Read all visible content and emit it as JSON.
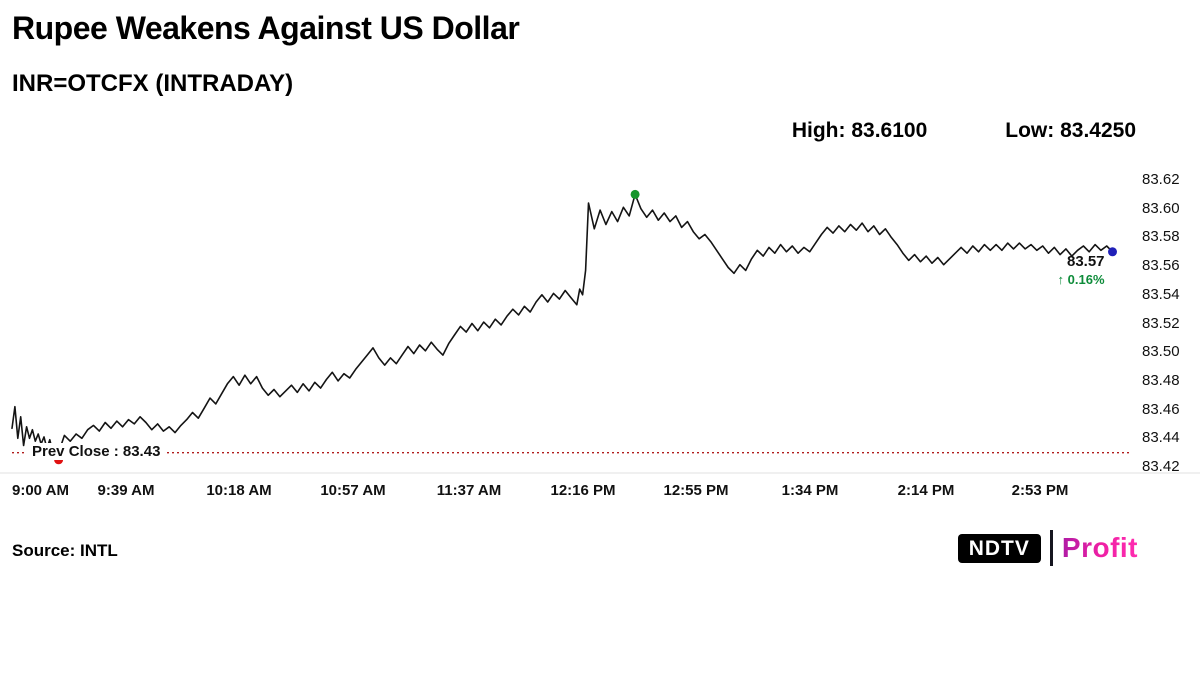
{
  "chart_data": {
    "type": "line",
    "title": "Rupee Weakens Against US Dollar",
    "subtitle": "INR=OTCFX (INTRADAY)",
    "high_label": "High: 83.6100",
    "low_label": "Low: 83.4250",
    "line_color": "#141414",
    "grid": false,
    "ylabel_side": "right",
    "ylim": [
      83.42,
      83.62
    ],
    "xlim_minutes": [
      0,
      384
    ],
    "y_ticks": [
      "83.62",
      "83.60",
      "83.58",
      "83.56",
      "83.54",
      "83.52",
      "83.50",
      "83.48",
      "83.46",
      "83.44",
      "83.42"
    ],
    "x_ticks": [
      {
        "t": 0,
        "label": "9:00 AM"
      },
      {
        "t": 39,
        "label": "9:39 AM"
      },
      {
        "t": 78,
        "label": "10:18 AM"
      },
      {
        "t": 117,
        "label": "10:57 AM"
      },
      {
        "t": 157,
        "label": "11:37 AM"
      },
      {
        "t": 196,
        "label": "12:16 PM"
      },
      {
        "t": 235,
        "label": "12:55 PM"
      },
      {
        "t": 274,
        "label": "1:34 PM"
      },
      {
        "t": 314,
        "label": "2:14 PM"
      },
      {
        "t": 353,
        "label": "2:53 PM"
      }
    ],
    "prev_close": {
      "value": 83.43,
      "label": "Prev Close : 83.43",
      "color": "#b11c1c"
    },
    "low_marker": {
      "t": 16,
      "value": 83.425,
      "color": "#e01111"
    },
    "high_marker": {
      "t": 214,
      "value": 83.61,
      "color": "#18962d"
    },
    "last_marker": {
      "t": 378,
      "value": 83.57,
      "color": "#2020b8",
      "price_label": "83.57",
      "change_label": "↑ 0.16%",
      "change_color": "#0e8c3a"
    },
    "series": [
      {
        "name": "INR=OTCFX",
        "points": [
          [
            0,
            83.447
          ],
          [
            1,
            83.462
          ],
          [
            2,
            83.44
          ],
          [
            3,
            83.455
          ],
          [
            4,
            83.435
          ],
          [
            5,
            83.448
          ],
          [
            6,
            83.44
          ],
          [
            7,
            83.446
          ],
          [
            8,
            83.438
          ],
          [
            9,
            83.443
          ],
          [
            10,
            83.436
          ],
          [
            11,
            83.441
          ],
          [
            12,
            83.433
          ],
          [
            13,
            83.439
          ],
          [
            14,
            83.43
          ],
          [
            15,
            83.435
          ],
          [
            16,
            83.425
          ],
          [
            17,
            83.436
          ],
          [
            18,
            83.442
          ],
          [
            20,
            83.438
          ],
          [
            22,
            83.443
          ],
          [
            24,
            83.44
          ],
          [
            26,
            83.446
          ],
          [
            28,
            83.449
          ],
          [
            30,
            83.445
          ],
          [
            32,
            83.451
          ],
          [
            34,
            83.447
          ],
          [
            36,
            83.452
          ],
          [
            38,
            83.448
          ],
          [
            40,
            83.453
          ],
          [
            42,
            83.45
          ],
          [
            44,
            83.455
          ],
          [
            46,
            83.451
          ],
          [
            48,
            83.446
          ],
          [
            50,
            83.45
          ],
          [
            52,
            83.445
          ],
          [
            54,
            83.448
          ],
          [
            56,
            83.444
          ],
          [
            58,
            83.449
          ],
          [
            60,
            83.453
          ],
          [
            62,
            83.458
          ],
          [
            64,
            83.454
          ],
          [
            66,
            83.461
          ],
          [
            68,
            83.468
          ],
          [
            70,
            83.464
          ],
          [
            72,
            83.471
          ],
          [
            74,
            83.478
          ],
          [
            76,
            83.483
          ],
          [
            78,
            83.477
          ],
          [
            80,
            83.484
          ],
          [
            82,
            83.478
          ],
          [
            84,
            83.483
          ],
          [
            86,
            83.475
          ],
          [
            88,
            83.47
          ],
          [
            90,
            83.474
          ],
          [
            92,
            83.469
          ],
          [
            94,
            83.473
          ],
          [
            96,
            83.477
          ],
          [
            98,
            83.472
          ],
          [
            100,
            83.478
          ],
          [
            102,
            83.473
          ],
          [
            104,
            83.479
          ],
          [
            106,
            83.475
          ],
          [
            108,
            83.481
          ],
          [
            110,
            83.486
          ],
          [
            112,
            83.48
          ],
          [
            114,
            83.485
          ],
          [
            116,
            83.482
          ],
          [
            118,
            83.488
          ],
          [
            120,
            83.493
          ],
          [
            122,
            83.498
          ],
          [
            124,
            83.503
          ],
          [
            126,
            83.496
          ],
          [
            128,
            83.491
          ],
          [
            130,
            83.496
          ],
          [
            132,
            83.492
          ],
          [
            134,
            83.498
          ],
          [
            136,
            83.504
          ],
          [
            138,
            83.499
          ],
          [
            140,
            83.505
          ],
          [
            142,
            83.501
          ],
          [
            144,
            83.507
          ],
          [
            146,
            83.502
          ],
          [
            148,
            83.498
          ],
          [
            150,
            83.506
          ],
          [
            152,
            83.512
          ],
          [
            154,
            83.518
          ],
          [
            156,
            83.514
          ],
          [
            158,
            83.52
          ],
          [
            160,
            83.515
          ],
          [
            162,
            83.521
          ],
          [
            164,
            83.517
          ],
          [
            166,
            83.523
          ],
          [
            168,
            83.519
          ],
          [
            170,
            83.525
          ],
          [
            172,
            83.53
          ],
          [
            174,
            83.526
          ],
          [
            176,
            83.532
          ],
          [
            178,
            83.528
          ],
          [
            180,
            83.535
          ],
          [
            182,
            83.54
          ],
          [
            184,
            83.535
          ],
          [
            186,
            83.541
          ],
          [
            188,
            83.537
          ],
          [
            190,
            83.543
          ],
          [
            192,
            83.538
          ],
          [
            194,
            83.533
          ],
          [
            195,
            83.544
          ],
          [
            196,
            83.54
          ],
          [
            197,
            83.557
          ],
          [
            198,
            83.604
          ],
          [
            200,
            83.586
          ],
          [
            202,
            83.599
          ],
          [
            204,
            83.589
          ],
          [
            206,
            83.598
          ],
          [
            208,
            83.591
          ],
          [
            210,
            83.601
          ],
          [
            212,
            83.595
          ],
          [
            214,
            83.61
          ],
          [
            216,
            83.6
          ],
          [
            218,
            83.594
          ],
          [
            220,
            83.599
          ],
          [
            222,
            83.592
          ],
          [
            224,
            83.597
          ],
          [
            226,
            83.591
          ],
          [
            228,
            83.595
          ],
          [
            230,
            83.587
          ],
          [
            232,
            83.591
          ],
          [
            234,
            83.584
          ],
          [
            236,
            83.579
          ],
          [
            238,
            83.582
          ],
          [
            240,
            83.577
          ],
          [
            242,
            83.571
          ],
          [
            244,
            83.565
          ],
          [
            246,
            83.559
          ],
          [
            248,
            83.555
          ],
          [
            250,
            83.561
          ],
          [
            252,
            83.557
          ],
          [
            254,
            83.565
          ],
          [
            256,
            83.571
          ],
          [
            258,
            83.567
          ],
          [
            260,
            83.573
          ],
          [
            262,
            83.569
          ],
          [
            264,
            83.575
          ],
          [
            266,
            83.57
          ],
          [
            268,
            83.574
          ],
          [
            270,
            83.569
          ],
          [
            272,
            83.573
          ],
          [
            274,
            83.57
          ],
          [
            276,
            83.576
          ],
          [
            278,
            83.582
          ],
          [
            280,
            83.587
          ],
          [
            282,
            83.583
          ],
          [
            284,
            83.588
          ],
          [
            286,
            83.584
          ],
          [
            288,
            83.589
          ],
          [
            290,
            83.585
          ],
          [
            292,
            83.59
          ],
          [
            294,
            83.584
          ],
          [
            296,
            83.588
          ],
          [
            298,
            83.582
          ],
          [
            300,
            83.586
          ],
          [
            302,
            83.58
          ],
          [
            304,
            83.575
          ],
          [
            306,
            83.569
          ],
          [
            308,
            83.564
          ],
          [
            310,
            83.568
          ],
          [
            312,
            83.563
          ],
          [
            314,
            83.567
          ],
          [
            316,
            83.562
          ],
          [
            318,
            83.566
          ],
          [
            320,
            83.561
          ],
          [
            322,
            83.565
          ],
          [
            324,
            83.569
          ],
          [
            326,
            83.573
          ],
          [
            328,
            83.569
          ],
          [
            330,
            83.574
          ],
          [
            332,
            83.57
          ],
          [
            334,
            83.575
          ],
          [
            336,
            83.571
          ],
          [
            338,
            83.575
          ],
          [
            340,
            83.571
          ],
          [
            342,
            83.576
          ],
          [
            344,
            83.572
          ],
          [
            346,
            83.576
          ],
          [
            348,
            83.572
          ],
          [
            350,
            83.575
          ],
          [
            352,
            83.571
          ],
          [
            354,
            83.574
          ],
          [
            356,
            83.569
          ],
          [
            358,
            83.573
          ],
          [
            360,
            83.568
          ],
          [
            362,
            83.572
          ],
          [
            364,
            83.567
          ],
          [
            366,
            83.571
          ],
          [
            368,
            83.574
          ],
          [
            370,
            83.57
          ],
          [
            372,
            83.575
          ],
          [
            374,
            83.571
          ],
          [
            376,
            83.574
          ],
          [
            378,
            83.57
          ]
        ]
      }
    ]
  },
  "footer": {
    "source": "Source: INTL"
  },
  "logo": {
    "ndtv": "NDTV",
    "profit": "Profit"
  }
}
